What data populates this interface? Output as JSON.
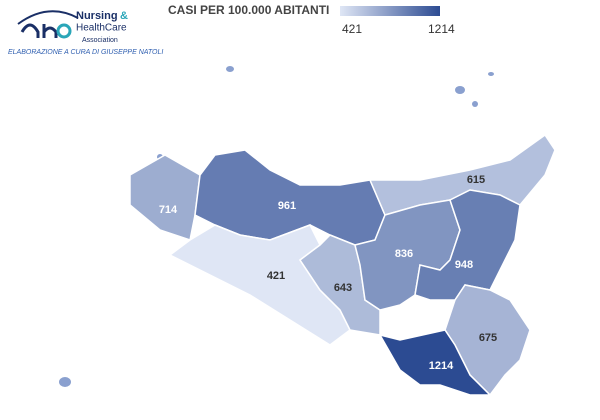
{
  "header": {
    "logo": {
      "word1": "Nursing",
      "amp": "&",
      "word2": "HealthCare",
      "word3": "Association"
    },
    "credit": "ELABORAZIONE A CURA DI GIUSEPPE NATOLI"
  },
  "chart_data": {
    "type": "choropleth",
    "title": "CASI PER 100.000 ABITANTI",
    "legend": {
      "min": 421,
      "max": 1214,
      "colors": [
        "#dfe6f5",
        "#2c4b92"
      ]
    },
    "values": [
      714,
      961,
      615,
      421,
      643,
      836,
      948,
      675,
      1214
    ]
  }
}
